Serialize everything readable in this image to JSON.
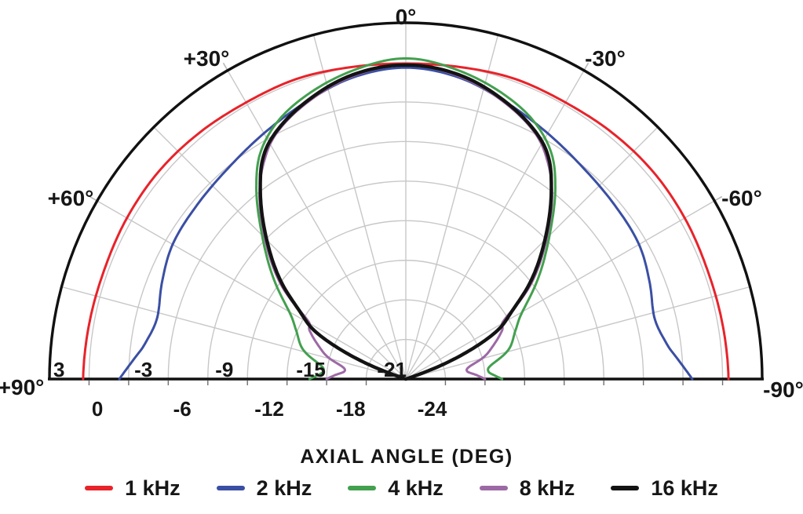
{
  "chart_data": {
    "type": "polar_line",
    "title": "",
    "xlabel": "AXIAL ANGLE (DEG)",
    "layout_hints": {
      "shape": "top semicircle",
      "positive_angles_side": "left",
      "grid": true,
      "grid_color": "#c7c7c7",
      "outline_color": "#111111",
      "legend_position": "bottom"
    },
    "angle_axis": {
      "min_deg": -90,
      "max_deg": 90,
      "grid_step_deg": 15,
      "labels": [
        {
          "deg": 0,
          "text": "0°"
        },
        {
          "deg": 30,
          "text": "+30°"
        },
        {
          "deg": -30,
          "text": "-30°"
        },
        {
          "deg": 60,
          "text": "+60°"
        },
        {
          "deg": -60,
          "text": "-60°"
        },
        {
          "deg": 90,
          "text": "+90°"
        },
        {
          "deg": -90,
          "text": "-90°"
        }
      ]
    },
    "r_axis": {
      "min": -24,
      "max": 3,
      "step": 3,
      "upper_tick_labels": [
        {
          "db": 3,
          "text": "3"
        },
        {
          "db": -3,
          "text": "-3"
        },
        {
          "db": -9,
          "text": "-9"
        },
        {
          "db": -15,
          "text": "-15"
        },
        {
          "db": -21,
          "text": "-21"
        }
      ],
      "lower_tick_labels": [
        {
          "db": 0,
          "text": "0"
        },
        {
          "db": -6,
          "text": "-6"
        },
        {
          "db": -12,
          "text": "-12"
        },
        {
          "db": -18,
          "text": "-18"
        },
        {
          "db": -24,
          "text": "-24"
        }
      ]
    },
    "series": [
      {
        "name": "1 kHz",
        "color": "#e8232a",
        "stroke_width": 3,
        "symmetric": true,
        "points_deg_db": [
          [
            0,
            -0.1
          ],
          [
            10,
            0.0
          ],
          [
            20,
            0.2
          ],
          [
            30,
            0.2
          ],
          [
            40,
            0.35
          ],
          [
            50,
            0.45
          ],
          [
            60,
            0.4
          ],
          [
            70,
            0.3
          ],
          [
            80,
            0.35
          ],
          [
            90,
            0.45
          ]
        ]
      },
      {
        "name": "2 kHz",
        "color": "#3a4fa4",
        "stroke_width": 3,
        "symmetric": true,
        "points_deg_db": [
          [
            0,
            -0.4
          ],
          [
            10,
            -0.8
          ],
          [
            20,
            -1.7
          ],
          [
            30,
            -2.5
          ],
          [
            40,
            -3.1
          ],
          [
            50,
            -3.4
          ],
          [
            60,
            -3.6
          ],
          [
            68,
            -4.1
          ],
          [
            76,
            -4.6
          ],
          [
            82,
            -4.1
          ],
          [
            86,
            -3.3
          ],
          [
            90,
            -2.3
          ]
        ]
      },
      {
        "name": "4 kHz",
        "color": "#43a04f",
        "stroke_width": 3,
        "symmetric": true,
        "points_deg_db": [
          [
            0,
            0.3
          ],
          [
            10,
            -0.3
          ],
          [
            20,
            -1.3
          ],
          [
            27,
            -2.3
          ],
          [
            33,
            -3.7
          ],
          [
            38,
            -5.6
          ],
          [
            45,
            -8.6
          ],
          [
            53,
            -11.5
          ],
          [
            60,
            -13.8
          ],
          [
            66,
            -14.9
          ],
          [
            74,
            -15.9
          ],
          [
            81,
            -17.5
          ],
          [
            85,
            -17.7
          ],
          [
            88,
            -17.2
          ],
          [
            90,
            -16.7
          ]
        ]
      },
      {
        "name": "8 kHz",
        "color": "#9d69a5",
        "stroke_width": 3,
        "symmetric": true,
        "points_deg_db": [
          [
            0,
            -0.2
          ],
          [
            10,
            -0.7
          ],
          [
            20,
            -1.8
          ],
          [
            28,
            -3.0
          ],
          [
            33,
            -4.3
          ],
          [
            38,
            -6.0
          ],
          [
            45,
            -8.9
          ],
          [
            53,
            -12.2
          ],
          [
            59,
            -15.3
          ],
          [
            63,
            -15.8
          ],
          [
            69,
            -16.9
          ],
          [
            74,
            -17.8
          ],
          [
            79,
            -19.1
          ],
          [
            83,
            -19.3
          ],
          [
            87,
            -18.6
          ],
          [
            90,
            -18.0
          ]
        ]
      },
      {
        "name": "16 kHz",
        "color": "#131313",
        "stroke_width": 4.4,
        "symmetric": true,
        "points_deg_db": [
          [
            0,
            -0.2
          ],
          [
            10,
            -0.6
          ],
          [
            20,
            -1.7
          ],
          [
            28,
            -2.9
          ],
          [
            33,
            -4.1
          ],
          [
            38,
            -6.1
          ],
          [
            45,
            -9.1
          ],
          [
            52,
            -12.0
          ],
          [
            57,
            -14.3
          ],
          [
            62,
            -16.1
          ],
          [
            66,
            -18.8
          ],
          [
            69,
            -21.3
          ],
          [
            71,
            -23.2
          ],
          [
            74,
            -24
          ],
          [
            80,
            -24
          ],
          [
            90,
            -24
          ]
        ]
      }
    ]
  }
}
